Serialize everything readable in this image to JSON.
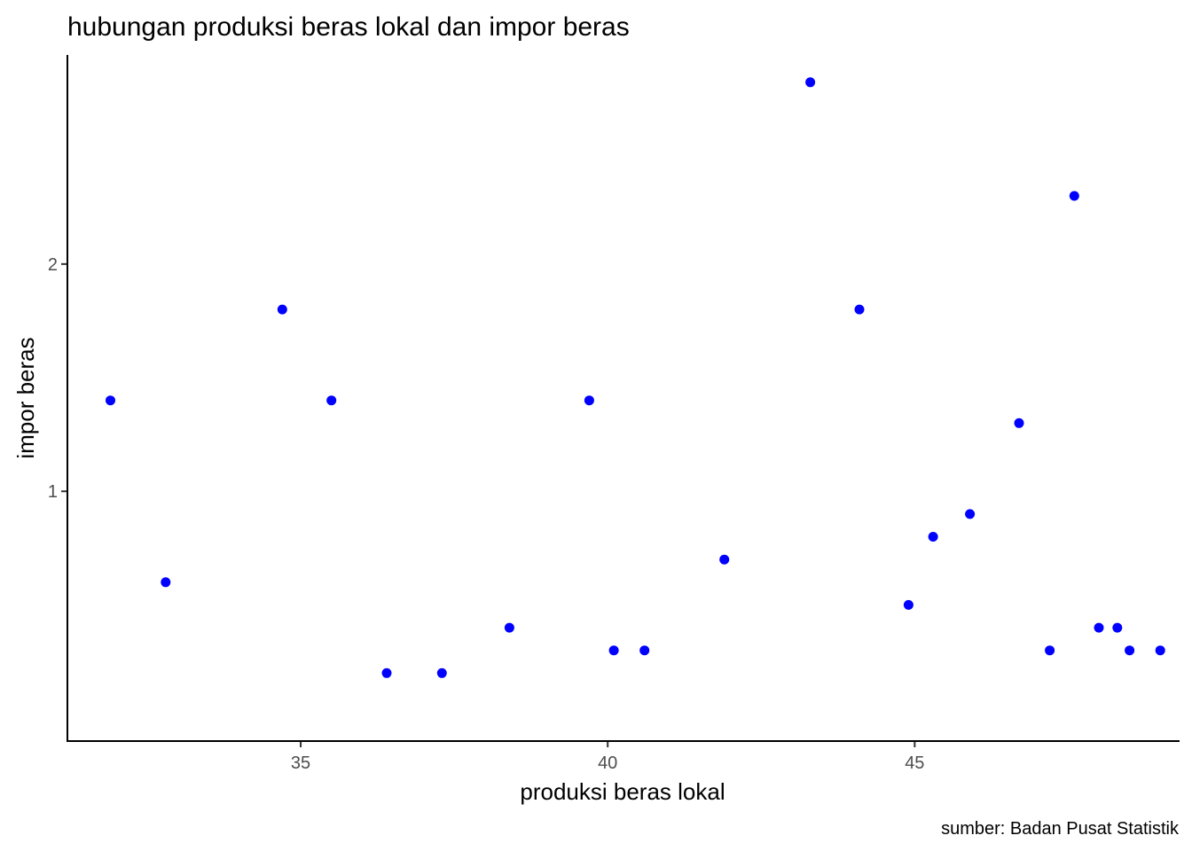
{
  "chart_data": {
    "type": "scatter",
    "title": "hubungan produksi beras lokal dan impor beras",
    "xlabel": "produksi beras lokal",
    "ylabel": "impor beras",
    "caption": "sumber: Badan Pusat Statistik",
    "xlim": [
      31.2,
      49.3
    ],
    "ylim": [
      -0.099,
      2.92
    ],
    "x_ticks": [
      35,
      40,
      45
    ],
    "x_tick_labels": [
      "35",
      "40",
      "45"
    ],
    "y_ticks": [
      1,
      2
    ],
    "y_tick_labels": [
      "1",
      "2"
    ],
    "grid": false,
    "legend": "none",
    "point_color": "#0000ff",
    "points": [
      {
        "x": 31.9,
        "y": 1.4
      },
      {
        "x": 32.8,
        "y": 0.6
      },
      {
        "x": 34.7,
        "y": 1.8
      },
      {
        "x": 35.5,
        "y": 1.4
      },
      {
        "x": 36.4,
        "y": 0.2
      },
      {
        "x": 37.3,
        "y": 0.2
      },
      {
        "x": 38.4,
        "y": 0.4
      },
      {
        "x": 39.7,
        "y": 1.4
      },
      {
        "x": 40.1,
        "y": 0.3
      },
      {
        "x": 40.6,
        "y": 0.3
      },
      {
        "x": 41.9,
        "y": 0.7
      },
      {
        "x": 43.3,
        "y": 2.8
      },
      {
        "x": 44.1,
        "y": 1.8
      },
      {
        "x": 44.9,
        "y": 0.5
      },
      {
        "x": 45.3,
        "y": 0.8
      },
      {
        "x": 45.9,
        "y": 0.9
      },
      {
        "x": 46.7,
        "y": 1.3
      },
      {
        "x": 47.2,
        "y": 0.3
      },
      {
        "x": 47.6,
        "y": 2.3
      },
      {
        "x": 48.0,
        "y": 0.4
      },
      {
        "x": 48.3,
        "y": 0.4
      },
      {
        "x": 48.5,
        "y": 0.3
      },
      {
        "x": 49.0,
        "y": 0.3
      }
    ]
  }
}
